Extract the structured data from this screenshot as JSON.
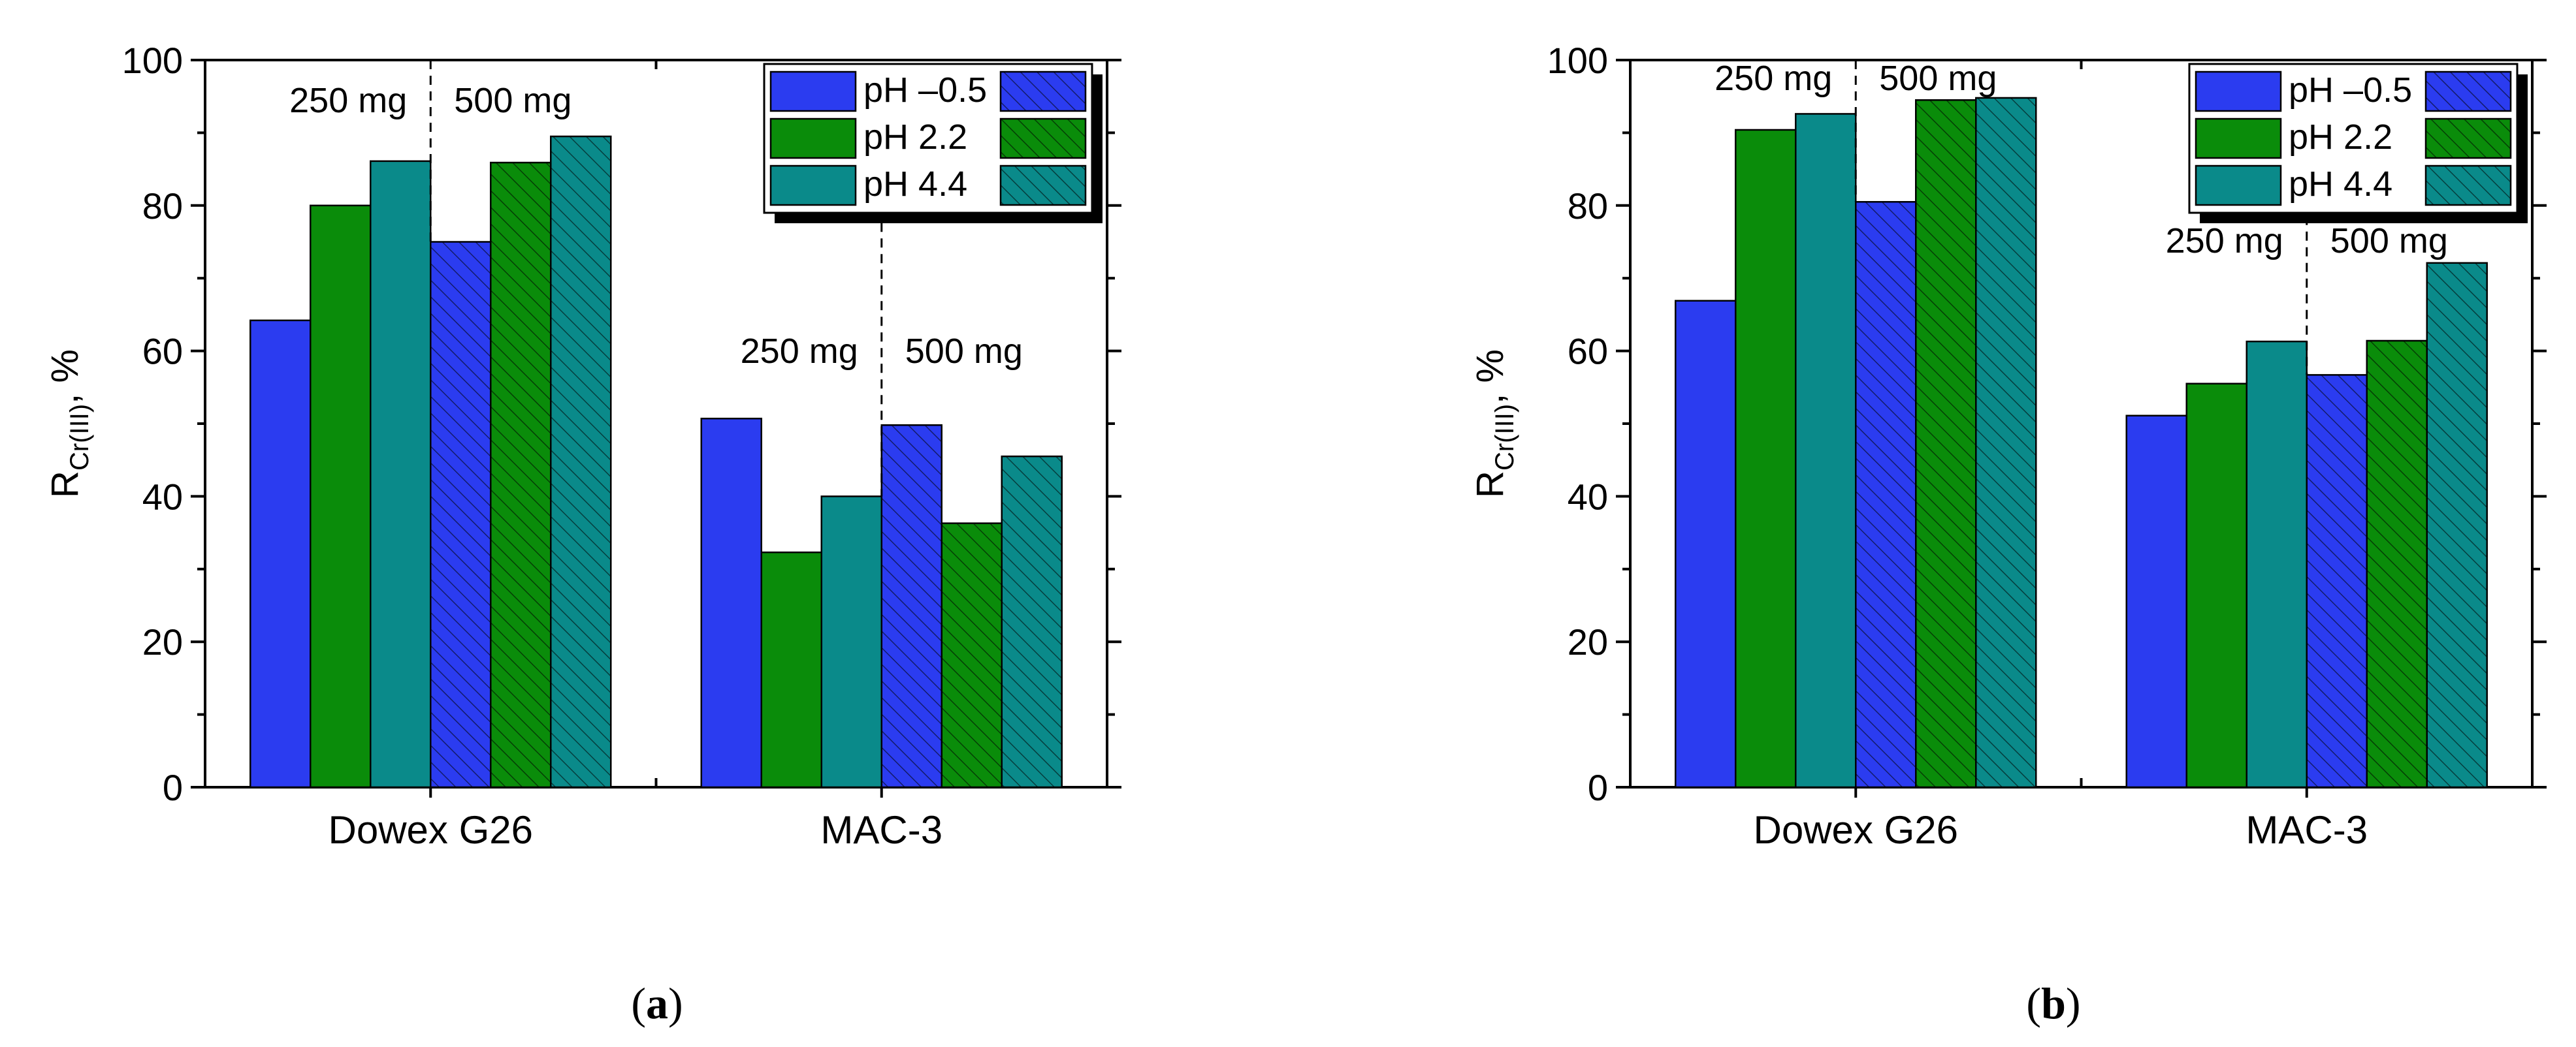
{
  "figure": {
    "panels": [
      {
        "label_open": "(",
        "label_letter": "a",
        "label_close": ")"
      },
      {
        "label_open": "(",
        "label_letter": "b",
        "label_close": ")"
      }
    ]
  },
  "colors": {
    "ph_m05": "#2b3cf0",
    "ph_22": "#0a8c0a",
    "ph_44": "#0a8a8a",
    "hatch": "#000000"
  },
  "chart_data": [
    {
      "type": "bar",
      "panel": "a",
      "categories": [
        "Dowex G26",
        "MAC-3"
      ],
      "ylabel_main": "R",
      "ylabel_sub": "Cr(III)",
      "ylabel_suffix": ", %",
      "ylim": [
        0,
        100
      ],
      "yticks": [
        "0",
        "20",
        "40",
        "60",
        "80",
        "100"
      ],
      "dose_labels": {
        "group0": [
          "250 mg",
          "500 mg"
        ],
        "group1": [
          "250 mg",
          "500 mg"
        ]
      },
      "legend": [
        "pH –0.5",
        "pH 2.2",
        "pH 4.4"
      ],
      "legend_position": "top-right",
      "series": [
        {
          "name": "pH –0.5 (250 mg)",
          "ph": "pH –0.5",
          "dose": "250 mg",
          "hatched": false,
          "values": [
            64.2,
            50.7
          ]
        },
        {
          "name": "pH 2.2 (250 mg)",
          "ph": "pH 2.2",
          "dose": "250 mg",
          "hatched": false,
          "values": [
            80.0,
            32.3
          ]
        },
        {
          "name": "pH 4.4 (250 mg)",
          "ph": "pH 4.4",
          "dose": "250 mg",
          "hatched": false,
          "values": [
            86.1,
            40.0
          ]
        },
        {
          "name": "pH –0.5 (500 mg)",
          "ph": "pH –0.5",
          "dose": "500 mg",
          "hatched": true,
          "values": [
            75.0,
            49.8
          ]
        },
        {
          "name": "pH 2.2 (500 mg)",
          "ph": "pH 2.2",
          "dose": "500 mg",
          "hatched": true,
          "values": [
            85.9,
            36.3
          ]
        },
        {
          "name": "pH 4.4 (500 mg)",
          "ph": "pH 4.4",
          "dose": "500 mg",
          "hatched": true,
          "values": [
            89.5,
            45.5
          ]
        }
      ]
    },
    {
      "type": "bar",
      "panel": "b",
      "categories": [
        "Dowex G26",
        "MAC-3"
      ],
      "ylabel_main": "R",
      "ylabel_sub": "Cr(III)",
      "ylabel_suffix": ", %",
      "ylim": [
        0,
        100
      ],
      "yticks": [
        "0",
        "20",
        "40",
        "60",
        "80",
        "100"
      ],
      "dose_labels": {
        "group0": [
          "250 mg",
          "500 mg"
        ],
        "group1": [
          "250 mg",
          "500 mg"
        ]
      },
      "legend": [
        "pH –0.5",
        "pH 2.2",
        "pH 4.4"
      ],
      "legend_position": "top-right",
      "series": [
        {
          "name": "pH –0.5 (250 mg)",
          "ph": "pH –0.5",
          "dose": "250 mg",
          "hatched": false,
          "values": [
            66.9,
            51.1
          ]
        },
        {
          "name": "pH 2.2 (250 mg)",
          "ph": "pH 2.2",
          "dose": "250 mg",
          "hatched": false,
          "values": [
            90.4,
            55.5
          ]
        },
        {
          "name": "pH 4.4 (250 mg)",
          "ph": "pH 4.4",
          "dose": "250 mg",
          "hatched": false,
          "values": [
            92.6,
            61.3
          ]
        },
        {
          "name": "pH –0.5 (500 mg)",
          "ph": "pH –0.5",
          "dose": "500 mg",
          "hatched": true,
          "values": [
            80.5,
            56.7
          ]
        },
        {
          "name": "pH 2.2 (500 mg)",
          "ph": "pH 2.2",
          "dose": "500 mg",
          "hatched": true,
          "values": [
            94.5,
            61.4
          ]
        },
        {
          "name": "pH 4.4 (500 mg)",
          "ph": "pH 4.4",
          "dose": "500 mg",
          "hatched": true,
          "values": [
            94.8,
            72.1
          ]
        }
      ]
    }
  ]
}
